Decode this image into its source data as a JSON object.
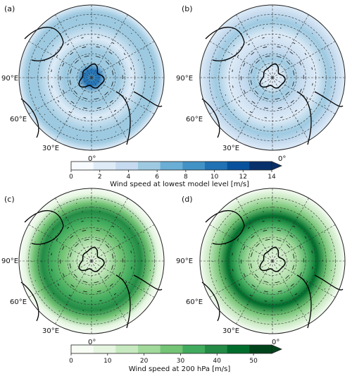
{
  "chart_data": [
    {
      "type": "heatmap",
      "panel_label": "(a)",
      "colorbar_label": "Wind speed at lowest model level [m/s]",
      "colorbar_ticks": [
        0,
        2,
        4,
        6,
        8,
        10,
        12,
        14
      ],
      "colorbar_range": [
        0,
        14
      ],
      "colormap": [
        "#f7fbff",
        "#deebf7",
        "#c6dbef",
        "#9ecae1",
        "#6baed6",
        "#4292c6",
        "#2171b5",
        "#08519c",
        "#08306b"
      ],
      "lon_labels": [
        "90°E",
        "60°E",
        "30°E",
        "0°"
      ],
      "ring_profile": [
        [
          0,
          9
        ],
        [
          0.1,
          10
        ],
        [
          0.2,
          6
        ],
        [
          0.38,
          5
        ],
        [
          0.55,
          3
        ],
        [
          0.75,
          6
        ],
        [
          0.9,
          5
        ],
        [
          1.0,
          3
        ]
      ],
      "extend": "max"
    },
    {
      "type": "heatmap",
      "panel_label": "(b)",
      "colorbar_label": "Wind speed at lowest model level [m/s]",
      "colorbar_ticks": [
        0,
        2,
        4,
        6,
        8,
        10,
        12,
        14
      ],
      "colorbar_range": [
        0,
        14
      ],
      "lon_labels": [
        "90°E",
        "60°E",
        "30°E",
        "0°"
      ],
      "ring_profile": [
        [
          0,
          3
        ],
        [
          0.12,
          3
        ],
        [
          0.25,
          5
        ],
        [
          0.4,
          4
        ],
        [
          0.6,
          3
        ],
        [
          0.78,
          5
        ],
        [
          0.9,
          4
        ],
        [
          1.0,
          2
        ]
      ]
    },
    {
      "type": "heatmap",
      "panel_label": "(c)",
      "colorbar_label": "Wind speed at 200 hPa [m/s]",
      "colorbar_ticks": [
        0,
        10,
        20,
        30,
        40,
        50
      ],
      "colorbar_range": [
        0,
        55
      ],
      "colormap": [
        "#f7fcf5",
        "#e5f5e0",
        "#c7e9c0",
        "#a1d99b",
        "#74c476",
        "#41ab5d",
        "#238b45",
        "#006d2c",
        "#00441b"
      ],
      "lon_labels": [
        "90°E",
        "60°E",
        "30°E",
        "0°"
      ],
      "ring_profile": [
        [
          0,
          12
        ],
        [
          0.2,
          18
        ],
        [
          0.4,
          25
        ],
        [
          0.55,
          35
        ],
        [
          0.68,
          40
        ],
        [
          0.8,
          28
        ],
        [
          0.92,
          12
        ],
        [
          1.0,
          6
        ]
      ],
      "extend": "max"
    },
    {
      "type": "heatmap",
      "panel_label": "(d)",
      "colorbar_label": "Wind speed at 200 hPa [m/s]",
      "colorbar_ticks": [
        0,
        10,
        20,
        30,
        40,
        50
      ],
      "colorbar_range": [
        0,
        55
      ],
      "lon_labels": [
        "90°E",
        "60°E",
        "30°E",
        "0°"
      ],
      "ring_profile": [
        [
          0,
          10
        ],
        [
          0.2,
          16
        ],
        [
          0.35,
          22
        ],
        [
          0.5,
          35
        ],
        [
          0.62,
          44
        ],
        [
          0.75,
          30
        ],
        [
          0.88,
          14
        ],
        [
          1.0,
          6
        ]
      ]
    }
  ]
}
